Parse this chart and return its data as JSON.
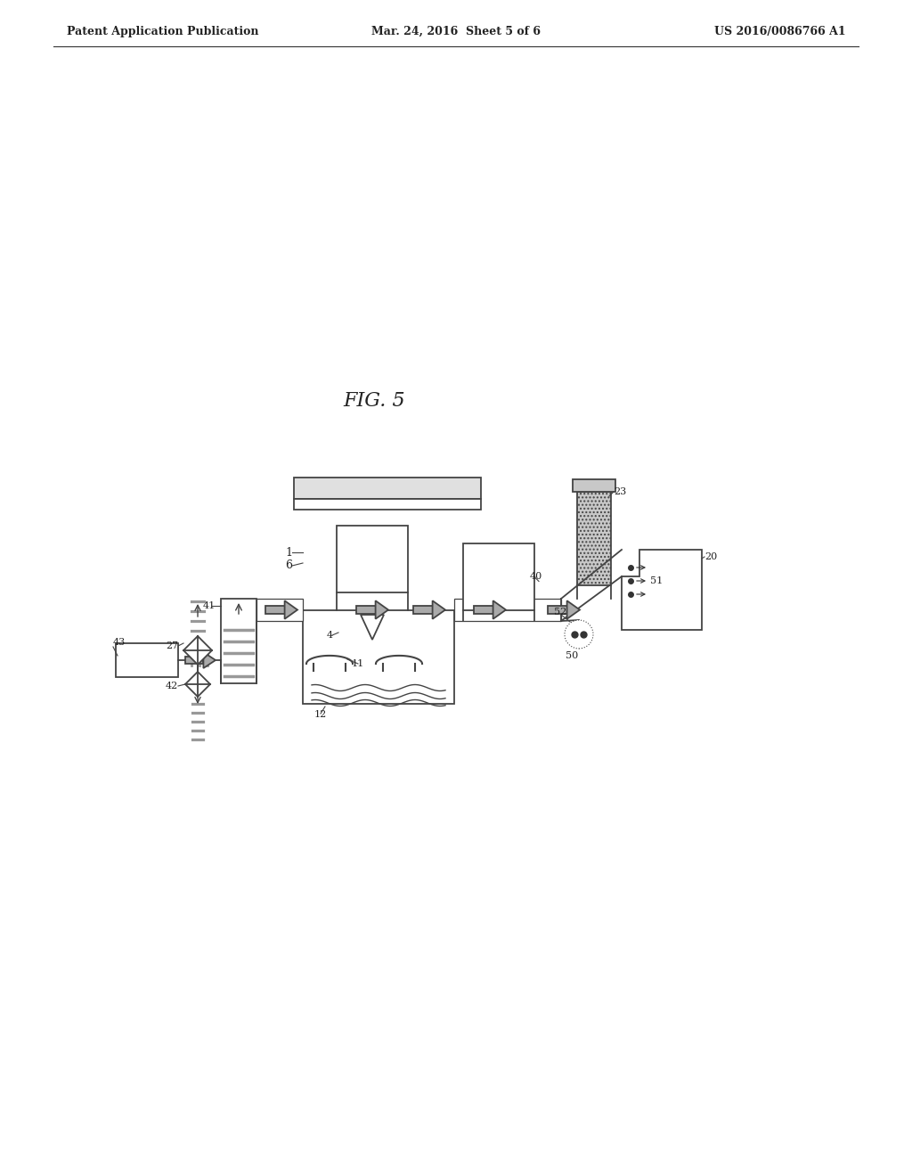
{
  "title": "FIG. 5",
  "header_left": "Patent Application Publication",
  "header_center": "Mar. 24, 2016  Sheet 5 of 6",
  "header_right": "US 2016/0086766 A1",
  "bg_color": "#ffffff",
  "line_color": "#444444",
  "gray_fill": "#c8c8c8",
  "light_gray": "#e0e0e0",
  "arrow_gray": "#aaaaaa"
}
